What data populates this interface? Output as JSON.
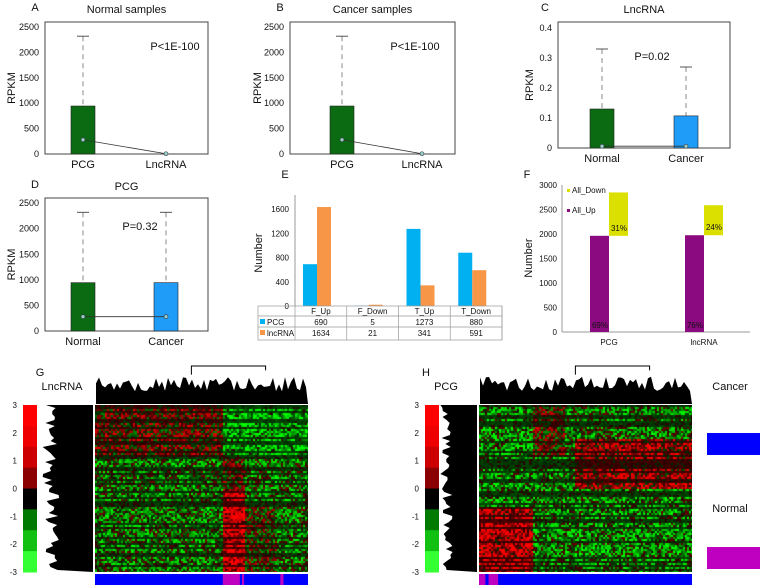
{
  "chart_data": [
    {
      "panel": "A",
      "type": "box",
      "title": "Normal samples",
      "ylabel": "RPKM",
      "ylim": [
        0,
        2600
      ],
      "yticks": [
        0,
        500,
        1000,
        1500,
        2000,
        2500
      ],
      "annotation": "P<1E-100",
      "categories": [
        "PCG",
        "LncRNA"
      ],
      "boxes": [
        {
          "low": 0,
          "high": 945,
          "whisker": 2320,
          "point": 280,
          "color": "#0a6b12"
        },
        {
          "low": 0,
          "high": 0,
          "whisker": 0,
          "point": 5,
          "color": "#0a6b12"
        }
      ]
    },
    {
      "panel": "B",
      "type": "box",
      "title": "Cancer samples",
      "ylabel": "RPKM",
      "ylim": [
        0,
        2600
      ],
      "yticks": [
        0,
        500,
        1000,
        1500,
        2000,
        2500
      ],
      "annotation": "P<1E-100",
      "categories": [
        "PCG",
        "LncRNA"
      ],
      "boxes": [
        {
          "low": 0,
          "high": 945,
          "whisker": 2320,
          "point": 280,
          "color": "#0a6b12"
        },
        {
          "low": 0,
          "high": 0,
          "whisker": 0,
          "point": 5,
          "color": "#0a6b12"
        }
      ]
    },
    {
      "panel": "C",
      "type": "box",
      "title": "LncRNA",
      "ylabel": "RPKM",
      "ylim": [
        0,
        0.42
      ],
      "yticks": [
        "0",
        "0.1",
        "0.2",
        "0.3",
        "0.4"
      ],
      "annotation": "P=0.02",
      "categories": [
        "Normal",
        "Cancer"
      ],
      "boxes": [
        {
          "low": 0,
          "high": 0.13,
          "whisker": 0.33,
          "point": 0.006,
          "color": "#0a6b12"
        },
        {
          "low": 0,
          "high": 0.107,
          "whisker": 0.27,
          "point": 0.006,
          "color": "#1e9cf7"
        }
      ]
    },
    {
      "panel": "D",
      "type": "box",
      "title": "PCG",
      "ylabel": "RPKM",
      "ylim": [
        0,
        2600
      ],
      "yticks": [
        0,
        500,
        1000,
        1500,
        2000,
        2500
      ],
      "annotation": "P=0.32",
      "categories": [
        "Normal",
        "Cancer"
      ],
      "boxes": [
        {
          "low": 0,
          "high": 945,
          "whisker": 2320,
          "point": 280,
          "color": "#0a6b12"
        },
        {
          "low": 0,
          "high": 945,
          "whisker": 2320,
          "point": 280,
          "color": "#1e9cf7"
        }
      ]
    },
    {
      "panel": "E",
      "type": "bar",
      "title": "",
      "ylabel": "Number",
      "ylim": [
        0,
        1750
      ],
      "yticks": [
        0,
        400,
        800,
        1200,
        1600
      ],
      "categories": [
        "F_Up",
        "F_Down",
        "T_Up",
        "T_Down"
      ],
      "series": [
        {
          "name": "PCG",
          "color": "#00b0f0",
          "values": [
            690,
            5,
            1273,
            880
          ]
        },
        {
          "name": "lncRNA",
          "color": "#f79646",
          "values": [
            1634,
            21,
            341,
            591
          ]
        }
      ]
    },
    {
      "panel": "F",
      "type": "bar",
      "stacked": true,
      "ylabel": "Number",
      "ylim": [
        0,
        3000
      ],
      "yticks": [
        0,
        500,
        1000,
        1500,
        2000,
        2500,
        3000
      ],
      "categories": [
        "PCG",
        "lncRNA"
      ],
      "series": [
        {
          "name": "All_Up",
          "color": "#8b0a7f",
          "values": [
            1963,
            1975
          ],
          "labels": [
            "69%",
            "76%"
          ]
        },
        {
          "name": "All_Down",
          "color": "#dbe000",
          "values": [
            885,
            612
          ],
          "labels": [
            "31%",
            "24%"
          ]
        }
      ]
    },
    {
      "panel": "G",
      "type": "heatmap",
      "title": "LncRNA",
      "colorbar_ticks": [
        "3",
        "2",
        "1",
        "0",
        "-1",
        "-2",
        "-3"
      ]
    },
    {
      "panel": "H",
      "type": "heatmap",
      "title": "PCG",
      "colorbar_ticks": [
        "3",
        "2",
        "1",
        "0",
        "-1",
        "-2",
        "-3"
      ]
    }
  ],
  "legend": {
    "items": [
      {
        "label": "Cancer",
        "color": "#0000ff"
      },
      {
        "label": "Normal",
        "color": "#c000c0"
      }
    ]
  }
}
